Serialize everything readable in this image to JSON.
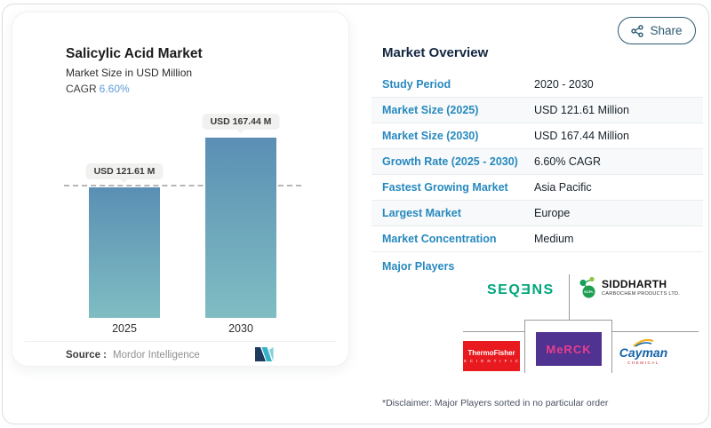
{
  "share": {
    "label": "Share",
    "icon": "share-nodes-icon",
    "color": "#2a5871"
  },
  "chart_data": {
    "type": "bar",
    "title": "Salicylic Acid Market",
    "subtitle": "Market Size in USD Million",
    "cagr_label": "CAGR",
    "cagr_value": "6.60%",
    "categories": [
      "2025",
      "2030"
    ],
    "values": [
      121.61,
      167.44
    ],
    "bar_labels": [
      "USD 121.61 M",
      "USD 167.44 M"
    ],
    "unit": "USD Million",
    "ylabel": "",
    "xlabel": "",
    "grid": "off",
    "reference_line": "dashed line at 2025 value (121.61)",
    "bar_gradient_top": "#5a8fb4",
    "bar_gradient_bottom": "#7fbdc3",
    "source_label": "Source :",
    "source_value": "Mordor Intelligence",
    "source_logo": "mordor-intelligence-m"
  },
  "overview": {
    "title": "Market Overview",
    "rows": [
      {
        "label": "Study Period",
        "value": "2020 - 2030"
      },
      {
        "label": "Market Size (2025)",
        "value": "USD 121.61 Million"
      },
      {
        "label": "Market Size (2030)",
        "value": "USD 167.44 Million"
      },
      {
        "label": "Growth Rate (2025 - 2030)",
        "value": "6.60% CAGR"
      },
      {
        "label": "Fastest Growing Market",
        "value": "Asia Pacific"
      },
      {
        "label": "Largest Market",
        "value": "Europe"
      },
      {
        "label": "Market Concentration",
        "value": "Medium"
      }
    ],
    "major_players_label": "Major Players",
    "players": [
      {
        "name": "SEQƎNS"
      },
      {
        "name": "SIDDHARTH",
        "subtext": "CARBOCHEM PRODUCTS LTD.",
        "icon": "molecule-icon"
      },
      {
        "name": "ThermoFisher",
        "subtext": "S C I E N T I F I C",
        "bg": "#e8191f"
      },
      {
        "name": "MeRCK",
        "bg": "#503291",
        "text_color": "#e83e8c"
      },
      {
        "name": "Cayman",
        "subtext": "CHEMICAL",
        "icon": "gold-swoosh-icon"
      }
    ],
    "disclaimer": "*Disclaimer: Major Players sorted in no particular order",
    "accent_blue": "#2789bf",
    "title_navy": "#132740"
  }
}
